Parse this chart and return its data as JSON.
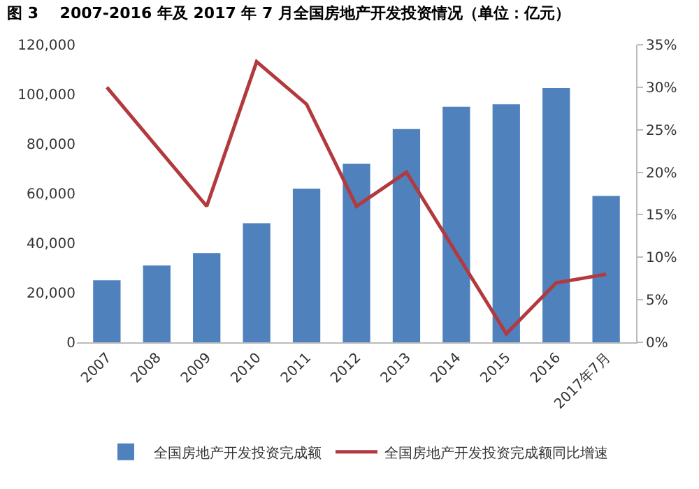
{
  "chart_data": {
    "type": "bar",
    "title": "图 3    2007-2016 年及 2017 年 7 月全国房地产开发投资情况（单位：亿元）",
    "categories": [
      "2007",
      "2008",
      "2009",
      "2010",
      "2011",
      "2012",
      "2013",
      "2014",
      "2015",
      "2016",
      "2017年7月"
    ],
    "series": [
      {
        "name": "全国房地产开发投资完成额",
        "color": "#4f81bd",
        "values": [
          25000,
          31000,
          36000,
          48000,
          62000,
          72000,
          86000,
          95000,
          96000,
          102500,
          59000
        ]
      },
      {
        "name": "全国房地产开发投资完成额同比增速",
        "type": "line",
        "axis": "y2",
        "color": "#b23a3e",
        "values": [
          30,
          23,
          16,
          33,
          28,
          16,
          20,
          10.5,
          1,
          7,
          8
        ]
      }
    ],
    "ylim": [
      0,
      120000
    ],
    "yticks": [
      {
        "value": 0,
        "label": "0"
      },
      {
        "value": 20000,
        "label": "20,000"
      },
      {
        "value": 40000,
        "label": "40,000"
      },
      {
        "value": 60000,
        "label": "60,000"
      },
      {
        "value": 80000,
        "label": "80,000"
      },
      {
        "value": 100000,
        "label": "100,000"
      },
      {
        "value": 120000,
        "label": "120,000"
      }
    ],
    "y2lim": [
      0,
      35
    ],
    "y2ticks": [
      {
        "value": 0,
        "label": "0%"
      },
      {
        "value": 5,
        "label": "5%"
      },
      {
        "value": 10,
        "label": "10%"
      },
      {
        "value": 15,
        "label": "15%"
      },
      {
        "value": 20,
        "label": "20%"
      },
      {
        "value": 25,
        "label": "25%"
      },
      {
        "value": 30,
        "label": "30%"
      },
      {
        "value": 35,
        "label": "35%"
      }
    ],
    "legend": "bottom",
    "grid": false
  }
}
